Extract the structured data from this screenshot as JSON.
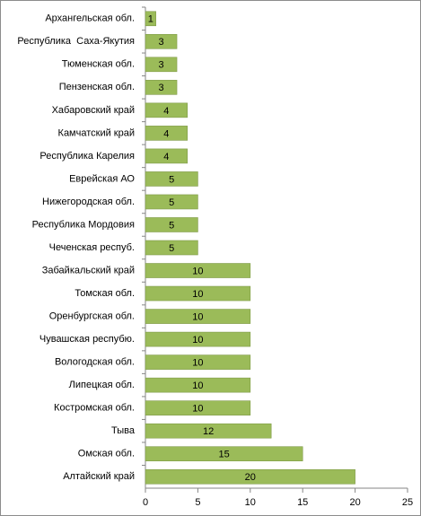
{
  "chart_data": {
    "type": "bar",
    "orientation": "horizontal",
    "categories": [
      "Архангельская обл.",
      "Республика  Саха-Якутия",
      "Тюменская обл.",
      "Пензенская обл.",
      "Хабаровский край",
      "Камчатский край",
      "Республика Карелия",
      "Еврейская АО",
      "Нижегородская обл.",
      "Республика Мордовия",
      "Чеченская респуб.",
      "Забайкальский край",
      "Томская обл.",
      "Оренбургская обл.",
      "Чувашская респубю.",
      "Вологодская обл.",
      "Липецкая обл.",
      "Костромская обл.",
      "Тыва",
      "Омская обл.",
      "Алтайский край"
    ],
    "values": [
      1,
      3,
      3,
      3,
      4,
      4,
      4,
      5,
      5,
      5,
      5,
      10,
      10,
      10,
      10,
      10,
      10,
      10,
      12,
      15,
      20
    ],
    "color": "#9bbb59",
    "xlim": [
      0,
      25
    ],
    "xticks": [
      0,
      5,
      10,
      15,
      20,
      25
    ]
  }
}
